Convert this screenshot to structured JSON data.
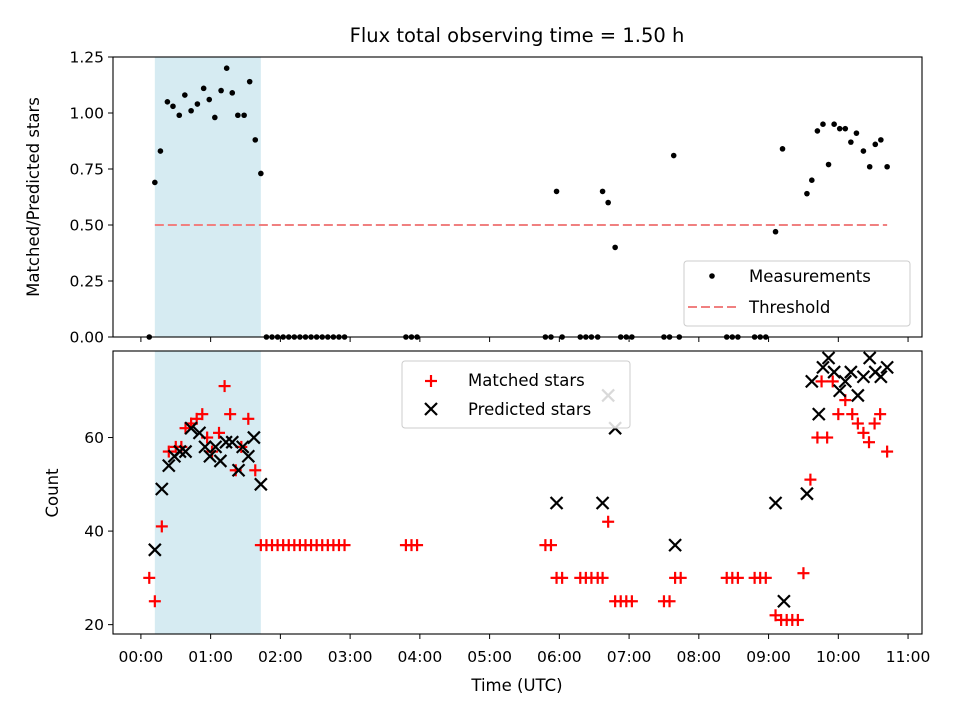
{
  "chart_data": [
    {
      "type": "scatter",
      "title": "Flux total observing time = 1.50 h",
      "ylabel": "Matched/Predicted stars",
      "xlabel": "",
      "xlim": [
        -0.4,
        11.2
      ],
      "ylim": [
        0,
        1.25
      ],
      "yticks": [
        "0.00",
        "0.25",
        "0.50",
        "0.75",
        "1.00",
        "1.25"
      ],
      "yticks_values": [
        0,
        0.25,
        0.5,
        0.75,
        1.0,
        1.25
      ],
      "shaded_span": {
        "x": [
          0.2,
          1.72
        ],
        "color": "#add8e6"
      },
      "legend_placement": "lower-right",
      "series": [
        {
          "name": "Measurements",
          "marker": "dot",
          "color": "#000000",
          "points": [
            [
              0.12,
              0.0
            ],
            [
              0.2,
              0.69
            ],
            [
              0.28,
              0.83
            ],
            [
              0.38,
              1.05
            ],
            [
              0.46,
              1.03
            ],
            [
              0.55,
              0.99
            ],
            [
              0.63,
              1.08
            ],
            [
              0.72,
              1.01
            ],
            [
              0.81,
              1.04
            ],
            [
              0.9,
              1.11
            ],
            [
              0.98,
              1.06
            ],
            [
              1.06,
              0.98
            ],
            [
              1.15,
              1.1
            ],
            [
              1.23,
              1.2
            ],
            [
              1.31,
              1.09
            ],
            [
              1.39,
              0.99
            ],
            [
              1.48,
              0.99
            ],
            [
              1.56,
              1.14
            ],
            [
              1.64,
              0.88
            ],
            [
              1.72,
              0.73
            ],
            [
              1.8,
              0.0
            ],
            [
              1.88,
              0.0
            ],
            [
              1.96,
              0.0
            ],
            [
              2.04,
              0.0
            ],
            [
              2.12,
              0.0
            ],
            [
              2.2,
              0.0
            ],
            [
              2.28,
              0.0
            ],
            [
              2.36,
              0.0
            ],
            [
              2.44,
              0.0
            ],
            [
              2.52,
              0.0
            ],
            [
              2.6,
              0.0
            ],
            [
              2.68,
              0.0
            ],
            [
              2.76,
              0.0
            ],
            [
              2.84,
              0.0
            ],
            [
              2.92,
              0.0
            ],
            [
              3.8,
              0.0
            ],
            [
              3.88,
              0.0
            ],
            [
              3.96,
              0.0
            ],
            [
              5.8,
              0.0
            ],
            [
              5.88,
              0.0
            ],
            [
              5.96,
              0.65
            ],
            [
              6.04,
              0.0
            ],
            [
              6.3,
              0.0
            ],
            [
              6.38,
              0.0
            ],
            [
              6.46,
              0.0
            ],
            [
              6.55,
              0.0
            ],
            [
              6.62,
              0.65
            ],
            [
              6.7,
              0.6
            ],
            [
              6.8,
              0.4
            ],
            [
              6.88,
              0.0
            ],
            [
              6.96,
              0.0
            ],
            [
              7.04,
              0.0
            ],
            [
              7.5,
              0.0
            ],
            [
              7.58,
              0.0
            ],
            [
              7.64,
              0.81
            ],
            [
              7.72,
              0.0
            ],
            [
              8.4,
              0.0
            ],
            [
              8.48,
              0.0
            ],
            [
              8.56,
              0.0
            ],
            [
              8.8,
              0.0
            ],
            [
              8.88,
              0.0
            ],
            [
              8.96,
              0.0
            ],
            [
              9.1,
              0.47
            ],
            [
              9.2,
              0.84
            ],
            [
              9.55,
              0.64
            ],
            [
              9.62,
              0.7
            ],
            [
              9.7,
              0.92
            ],
            [
              9.78,
              0.95
            ],
            [
              9.86,
              0.77
            ],
            [
              9.94,
              0.95
            ],
            [
              10.02,
              0.93
            ],
            [
              10.1,
              0.93
            ],
            [
              10.18,
              0.87
            ],
            [
              10.26,
              0.91
            ],
            [
              10.36,
              0.83
            ],
            [
              10.45,
              0.76
            ],
            [
              10.53,
              0.86
            ],
            [
              10.61,
              0.88
            ],
            [
              10.7,
              0.76
            ]
          ]
        },
        {
          "name": "Threshold",
          "marker": "dashed-line",
          "color": "#f08080",
          "points": [
            [
              0.2,
              0.5
            ],
            [
              10.7,
              0.5
            ]
          ]
        }
      ]
    },
    {
      "type": "scatter",
      "title": "",
      "ylabel": "Count",
      "xlabel": "Time (UTC)",
      "xlim": [
        -0.4,
        11.2
      ],
      "ylim": [
        18,
        78.5
      ],
      "yticks": [
        "20",
        "40",
        "60"
      ],
      "yticks_values": [
        20,
        40,
        60
      ],
      "xticks": [
        "00:00",
        "01:00",
        "02:00",
        "03:00",
        "04:00",
        "05:00",
        "06:00",
        "07:00",
        "08:00",
        "09:00",
        "10:00",
        "11:00"
      ],
      "xticks_values": [
        0,
        1,
        2,
        3,
        4,
        5,
        6,
        7,
        8,
        9,
        10,
        11
      ],
      "shaded_span": {
        "x": [
          0.2,
          1.72
        ],
        "color": "#add8e6"
      },
      "legend_placement": "upper-center",
      "series": [
        {
          "name": "Matched stars",
          "marker": "plus",
          "color": "#ff0000",
          "points": [
            [
              0.12,
              30
            ],
            [
              0.2,
              25
            ],
            [
              0.3,
              41
            ],
            [
              0.4,
              57
            ],
            [
              0.5,
              58
            ],
            [
              0.58,
              58
            ],
            [
              0.64,
              62
            ],
            [
              0.72,
              63
            ],
            [
              0.8,
              64
            ],
            [
              0.88,
              65
            ],
            [
              0.95,
              60
            ],
            [
              1.02,
              57
            ],
            [
              1.12,
              61
            ],
            [
              1.2,
              71
            ],
            [
              1.28,
              65
            ],
            [
              1.36,
              53
            ],
            [
              1.44,
              58
            ],
            [
              1.54,
              64
            ],
            [
              1.64,
              53
            ],
            [
              1.72,
              37
            ],
            [
              1.8,
              37
            ],
            [
              1.88,
              37
            ],
            [
              1.96,
              37
            ],
            [
              2.04,
              37
            ],
            [
              2.12,
              37
            ],
            [
              2.2,
              37
            ],
            [
              2.28,
              37
            ],
            [
              2.36,
              37
            ],
            [
              2.44,
              37
            ],
            [
              2.52,
              37
            ],
            [
              2.6,
              37
            ],
            [
              2.68,
              37
            ],
            [
              2.76,
              37
            ],
            [
              2.84,
              37
            ],
            [
              2.92,
              37
            ],
            [
              3.8,
              37
            ],
            [
              3.88,
              37
            ],
            [
              3.96,
              37
            ],
            [
              5.8,
              37
            ],
            [
              5.88,
              37
            ],
            [
              5.96,
              30
            ],
            [
              6.04,
              30
            ],
            [
              6.3,
              30
            ],
            [
              6.38,
              30
            ],
            [
              6.46,
              30
            ],
            [
              6.55,
              30
            ],
            [
              6.62,
              30
            ],
            [
              6.7,
              42
            ],
            [
              6.8,
              25
            ],
            [
              6.88,
              25
            ],
            [
              6.96,
              25
            ],
            [
              7.04,
              25
            ],
            [
              7.5,
              25
            ],
            [
              7.58,
              25
            ],
            [
              7.66,
              30
            ],
            [
              7.74,
              30
            ],
            [
              8.4,
              30
            ],
            [
              8.48,
              30
            ],
            [
              8.56,
              30
            ],
            [
              8.8,
              30
            ],
            [
              8.88,
              30
            ],
            [
              8.96,
              30
            ],
            [
              9.1,
              22
            ],
            [
              9.18,
              21
            ],
            [
              9.26,
              21
            ],
            [
              9.34,
              21
            ],
            [
              9.42,
              21
            ],
            [
              9.5,
              31
            ],
            [
              9.6,
              51
            ],
            [
              9.7,
              60
            ],
            [
              9.76,
              72
            ],
            [
              9.84,
              60
            ],
            [
              9.92,
              72
            ],
            [
              10.0,
              65
            ],
            [
              10.1,
              68
            ],
            [
              10.2,
              65
            ],
            [
              10.28,
              63
            ],
            [
              10.36,
              61
            ],
            [
              10.44,
              59
            ],
            [
              10.52,
              63
            ],
            [
              10.6,
              65
            ],
            [
              10.7,
              57
            ]
          ]
        },
        {
          "name": "Predicted stars",
          "marker": "x",
          "color": "#000000",
          "points": [
            [
              0.2,
              36
            ],
            [
              0.3,
              49
            ],
            [
              0.4,
              54
            ],
            [
              0.48,
              56
            ],
            [
              0.56,
              57
            ],
            [
              0.64,
              57
            ],
            [
              0.72,
              62
            ],
            [
              0.84,
              61
            ],
            [
              0.92,
              58
            ],
            [
              0.99,
              56
            ],
            [
              1.07,
              58
            ],
            [
              1.14,
              55
            ],
            [
              1.22,
              59
            ],
            [
              1.31,
              59
            ],
            [
              1.4,
              53
            ],
            [
              1.46,
              58
            ],
            [
              1.54,
              56
            ],
            [
              1.62,
              60
            ],
            [
              1.72,
              50
            ],
            [
              5.96,
              46
            ],
            [
              6.62,
              46
            ],
            [
              6.7,
              69
            ],
            [
              6.8,
              62
            ],
            [
              7.66,
              37
            ],
            [
              9.1,
              46
            ],
            [
              9.22,
              25
            ],
            [
              9.55,
              48
            ],
            [
              9.62,
              72
            ],
            [
              9.72,
              65
            ],
            [
              9.78,
              75
            ],
            [
              9.86,
              77
            ],
            [
              9.94,
              74
            ],
            [
              10.02,
              70
            ],
            [
              10.1,
              72
            ],
            [
              10.18,
              74
            ],
            [
              10.28,
              69
            ],
            [
              10.36,
              73
            ],
            [
              10.45,
              77
            ],
            [
              10.53,
              74
            ],
            [
              10.61,
              73
            ],
            [
              10.7,
              75
            ]
          ]
        }
      ]
    }
  ]
}
